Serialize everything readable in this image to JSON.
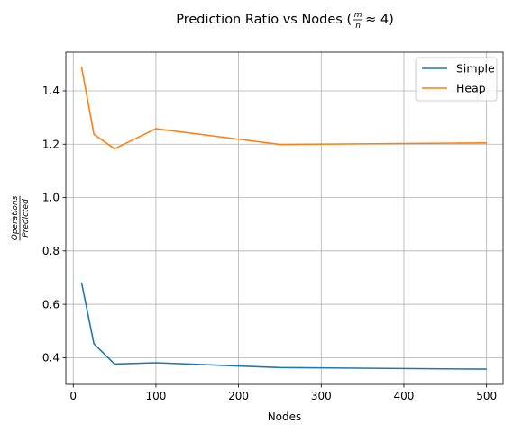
{
  "chart_data": {
    "type": "line",
    "title": {
      "prefix": "Prediction Ratio vs Nodes (",
      "frac_num": "m",
      "frac_den": "n",
      "suffix": "≈ 4)"
    },
    "xlabel": "Nodes",
    "ylabel": {
      "numerator": "Operations",
      "denominator": "Predicted"
    },
    "xlim": [
      -9,
      520
    ],
    "ylim": [
      0.3,
      1.545
    ],
    "xticks": [
      0,
      100,
      200,
      300,
      400,
      500
    ],
    "xtick_labels": [
      "0",
      "100",
      "200",
      "300",
      "400",
      "500"
    ],
    "yticks": [
      0.4,
      0.6,
      0.8,
      1.0,
      1.2,
      1.4
    ],
    "ytick_labels": [
      "0.4",
      "0.6",
      "0.8",
      "1.0",
      "1.2",
      "1.4"
    ],
    "grid": true,
    "legend_position": "upper right",
    "x": [
      10,
      25,
      50,
      100,
      250,
      500
    ],
    "series": [
      {
        "name": "Simple",
        "color": "#1f77b4",
        "values": [
          0.682,
          0.452,
          0.376,
          0.381,
          0.363,
          0.357
        ]
      },
      {
        "name": "Heap",
        "color": "#ff7f0e",
        "values": [
          1.49,
          1.237,
          1.183,
          1.258,
          1.199,
          1.205
        ]
      }
    ]
  }
}
